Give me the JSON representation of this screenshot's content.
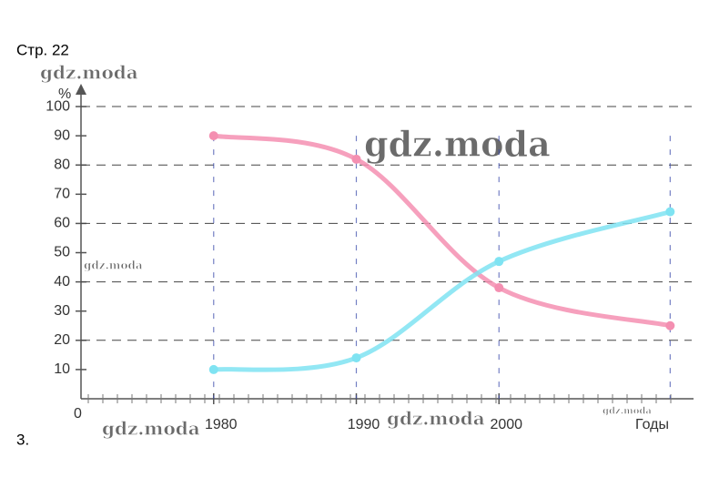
{
  "page": {
    "header": "Стр. 22",
    "task_number": "3.",
    "watermarks": [
      "gdz.moda",
      "gdz.moda",
      "gdz.moda",
      "gdz.moda",
      "gdz.moda",
      "gdz.moda"
    ]
  },
  "chart_data": {
    "type": "line",
    "y_label": "%",
    "x_label": "Годы",
    "origin_label": "0",
    "x": [
      1980,
      1990,
      2000,
      2012
    ],
    "xlim": [
      1970.7,
      2013
    ],
    "xticks": [
      1980,
      1990,
      2000
    ],
    "ylim": [
      0,
      105
    ],
    "yticks": [
      10,
      20,
      30,
      40,
      50,
      60,
      70,
      80,
      90,
      100
    ],
    "grid": true,
    "series": [
      {
        "color": "#f48fb1",
        "values": [
          90,
          82,
          38,
          25
        ]
      },
      {
        "color": "#7fe3f2",
        "values": [
          10,
          14,
          47,
          64
        ]
      }
    ]
  }
}
